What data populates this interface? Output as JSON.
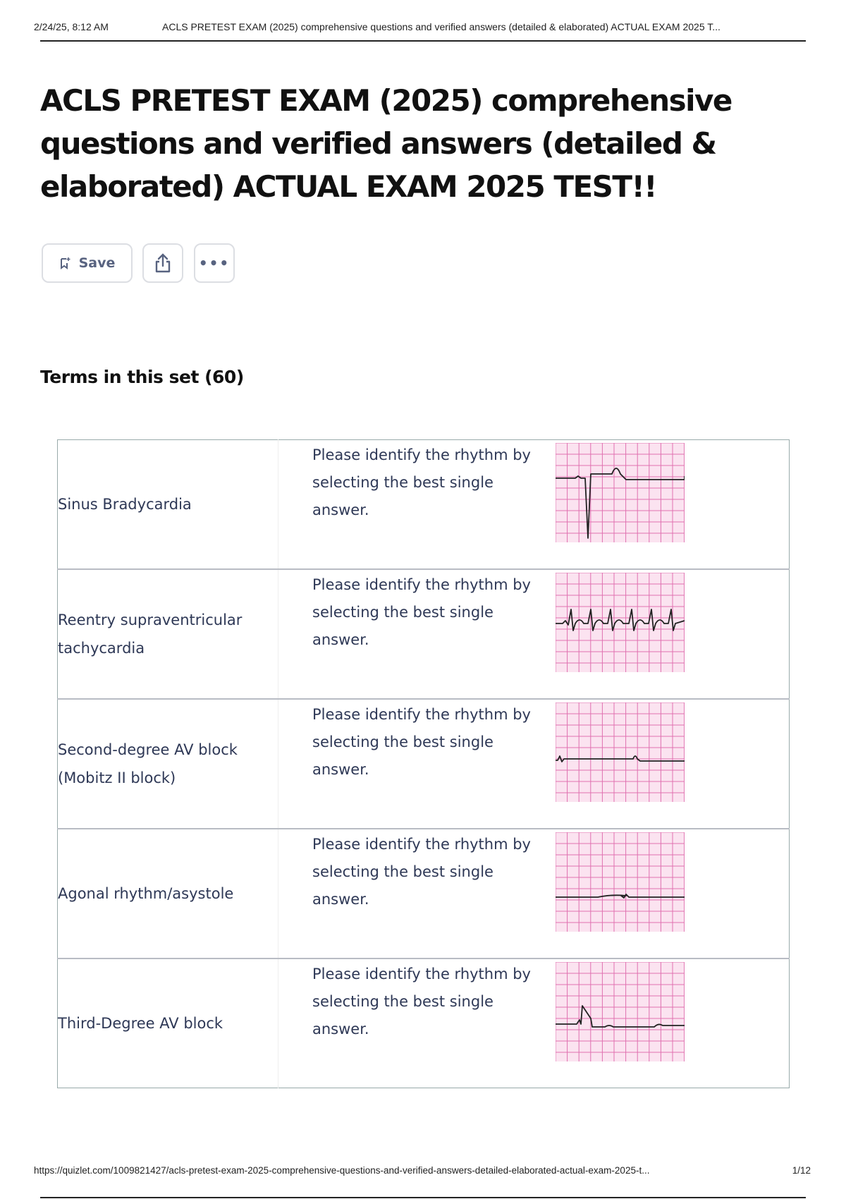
{
  "header": {
    "date": "2/24/25, 8:12 AM",
    "doc_title": "ACLS PRETEST EXAM (2025) comprehensive questions and verified answers (detailed & elaborated) ACTUAL EXAM 2025 T..."
  },
  "title": "ACLS PRETEST EXAM (2025) comprehensive questions and verified answers (detailed & elaborated) ACTUAL EXAM 2025 TEST!!",
  "toolbar": {
    "save_label": "Save",
    "save_icon": "bookmark-plus-icon",
    "share_icon": "share-icon",
    "more_label": "•••"
  },
  "terms_heading": "Terms in this set (60)",
  "terms": [
    {
      "term": "Sinus Bradycardia",
      "definition": "Please identify the rhythm by selecting the best single answer.",
      "ecg": "sinus-bradycardia"
    },
    {
      "term": "Reentry supraventricular tachycardia",
      "definition": "Please identify the rhythm by selecting the best single answer.",
      "ecg": "svt"
    },
    {
      "term": "Second-degree AV block (Mobitz II block)",
      "definition": "Please identify the rhythm by selecting the best single answer.",
      "ecg": "mobitz-ii"
    },
    {
      "term": "Agonal rhythm/asystole",
      "definition": "Please identify the rhythm by selecting the best single answer.",
      "ecg": "agonal"
    },
    {
      "term": "Third-Degree AV block",
      "definition": "Please identify the rhythm by selecting the best single answer.",
      "ecg": "third-degree"
    }
  ],
  "colors": {
    "ecg_grid_bg": "#fbe3f0",
    "ecg_grid_line": "#e070b0",
    "button_text": "#586380"
  },
  "footer": {
    "url": "https://quizlet.com/1009821427/acls-pretest-exam-2025-comprehensive-questions-and-verified-answers-detailed-elaborated-actual-exam-2025-t...",
    "page": "1/12"
  }
}
